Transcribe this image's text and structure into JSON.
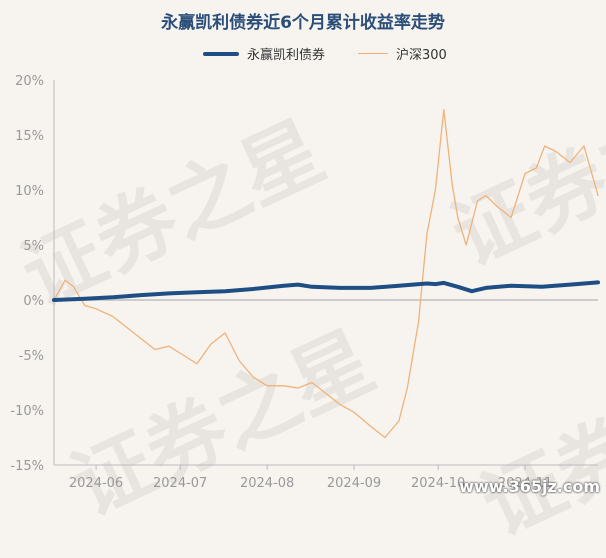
{
  "title": "永赢凯利债券近6个月累计收益率走势",
  "watermark_text": "证券之星",
  "footer_watermark": "www.365jz.com",
  "colors": {
    "fund": "#1f4e84",
    "index": "#f0b27a",
    "axis": "#999999",
    "zero": "#cccccc"
  },
  "chart_data": {
    "type": "line",
    "ylim": [
      -15,
      20
    ],
    "yticks": [
      20,
      15,
      10,
      5,
      0,
      -5,
      -10,
      -15
    ],
    "ytick_labels": [
      "20%",
      "15%",
      "10%",
      "5%",
      "0%",
      "-5%",
      "-10%",
      "-15%"
    ],
    "xlim": [
      "2024-05-17",
      "2024-11-27"
    ],
    "xticks": [
      "2024-06-01",
      "2024-07-01",
      "2024-08-01",
      "2024-09-01",
      "2024-10-01",
      "2024-11-01"
    ],
    "xtick_labels": [
      "2024-06",
      "2024-07",
      "2024-08",
      "2024-09",
      "2024-10",
      "2024-11"
    ],
    "legend_position": "top-center",
    "series": [
      {
        "name": "永赢凯利债券",
        "color": "#1f4e84",
        "x": [
          "2024-05-17",
          "2024-05-27",
          "2024-06-07",
          "2024-06-17",
          "2024-06-27",
          "2024-07-07",
          "2024-07-17",
          "2024-07-27",
          "2024-08-07",
          "2024-08-12",
          "2024-08-17",
          "2024-08-27",
          "2024-09-07",
          "2024-09-17",
          "2024-09-27",
          "2024-09-30",
          "2024-10-03",
          "2024-10-08",
          "2024-10-13",
          "2024-10-18",
          "2024-10-27",
          "2024-11-07",
          "2024-11-17",
          "2024-11-27"
        ],
        "values": [
          0.0,
          0.1,
          0.25,
          0.45,
          0.6,
          0.7,
          0.8,
          1.0,
          1.3,
          1.4,
          1.2,
          1.1,
          1.1,
          1.3,
          1.5,
          1.45,
          1.55,
          1.2,
          0.8,
          1.1,
          1.3,
          1.2,
          1.4,
          1.6
        ]
      },
      {
        "name": "沪深300",
        "color": "#f0b27a",
        "x": [
          "2024-05-17",
          "2024-05-21",
          "2024-05-24",
          "2024-05-28",
          "2024-06-01",
          "2024-06-07",
          "2024-06-12",
          "2024-06-17",
          "2024-06-22",
          "2024-06-27",
          "2024-07-02",
          "2024-07-07",
          "2024-07-12",
          "2024-07-17",
          "2024-07-22",
          "2024-07-27",
          "2024-08-01",
          "2024-08-07",
          "2024-08-12",
          "2024-08-17",
          "2024-08-22",
          "2024-08-27",
          "2024-09-01",
          "2024-09-07",
          "2024-09-12",
          "2024-09-17",
          "2024-09-20",
          "2024-09-24",
          "2024-09-27",
          "2024-09-30",
          "2024-10-03",
          "2024-10-06",
          "2024-10-08",
          "2024-10-11",
          "2024-10-15",
          "2024-10-18",
          "2024-10-22",
          "2024-10-27",
          "2024-11-01",
          "2024-11-05",
          "2024-11-08",
          "2024-11-12",
          "2024-11-17",
          "2024-11-22",
          "2024-11-27"
        ],
        "values": [
          0.0,
          1.8,
          1.2,
          -0.5,
          -0.8,
          -1.5,
          -2.5,
          -3.5,
          -4.5,
          -4.2,
          -5.0,
          -5.8,
          -4.0,
          -3.0,
          -5.5,
          -7.0,
          -7.8,
          -7.8,
          -8.0,
          -7.5,
          -8.5,
          -9.5,
          -10.2,
          -11.5,
          -12.5,
          -11.0,
          -8.0,
          -2.0,
          6.0,
          10.0,
          17.3,
          10.5,
          7.5,
          5.0,
          9.0,
          9.5,
          8.5,
          7.5,
          11.5,
          12.0,
          14.0,
          13.5,
          12.5,
          14.0,
          9.5
        ]
      }
    ]
  }
}
